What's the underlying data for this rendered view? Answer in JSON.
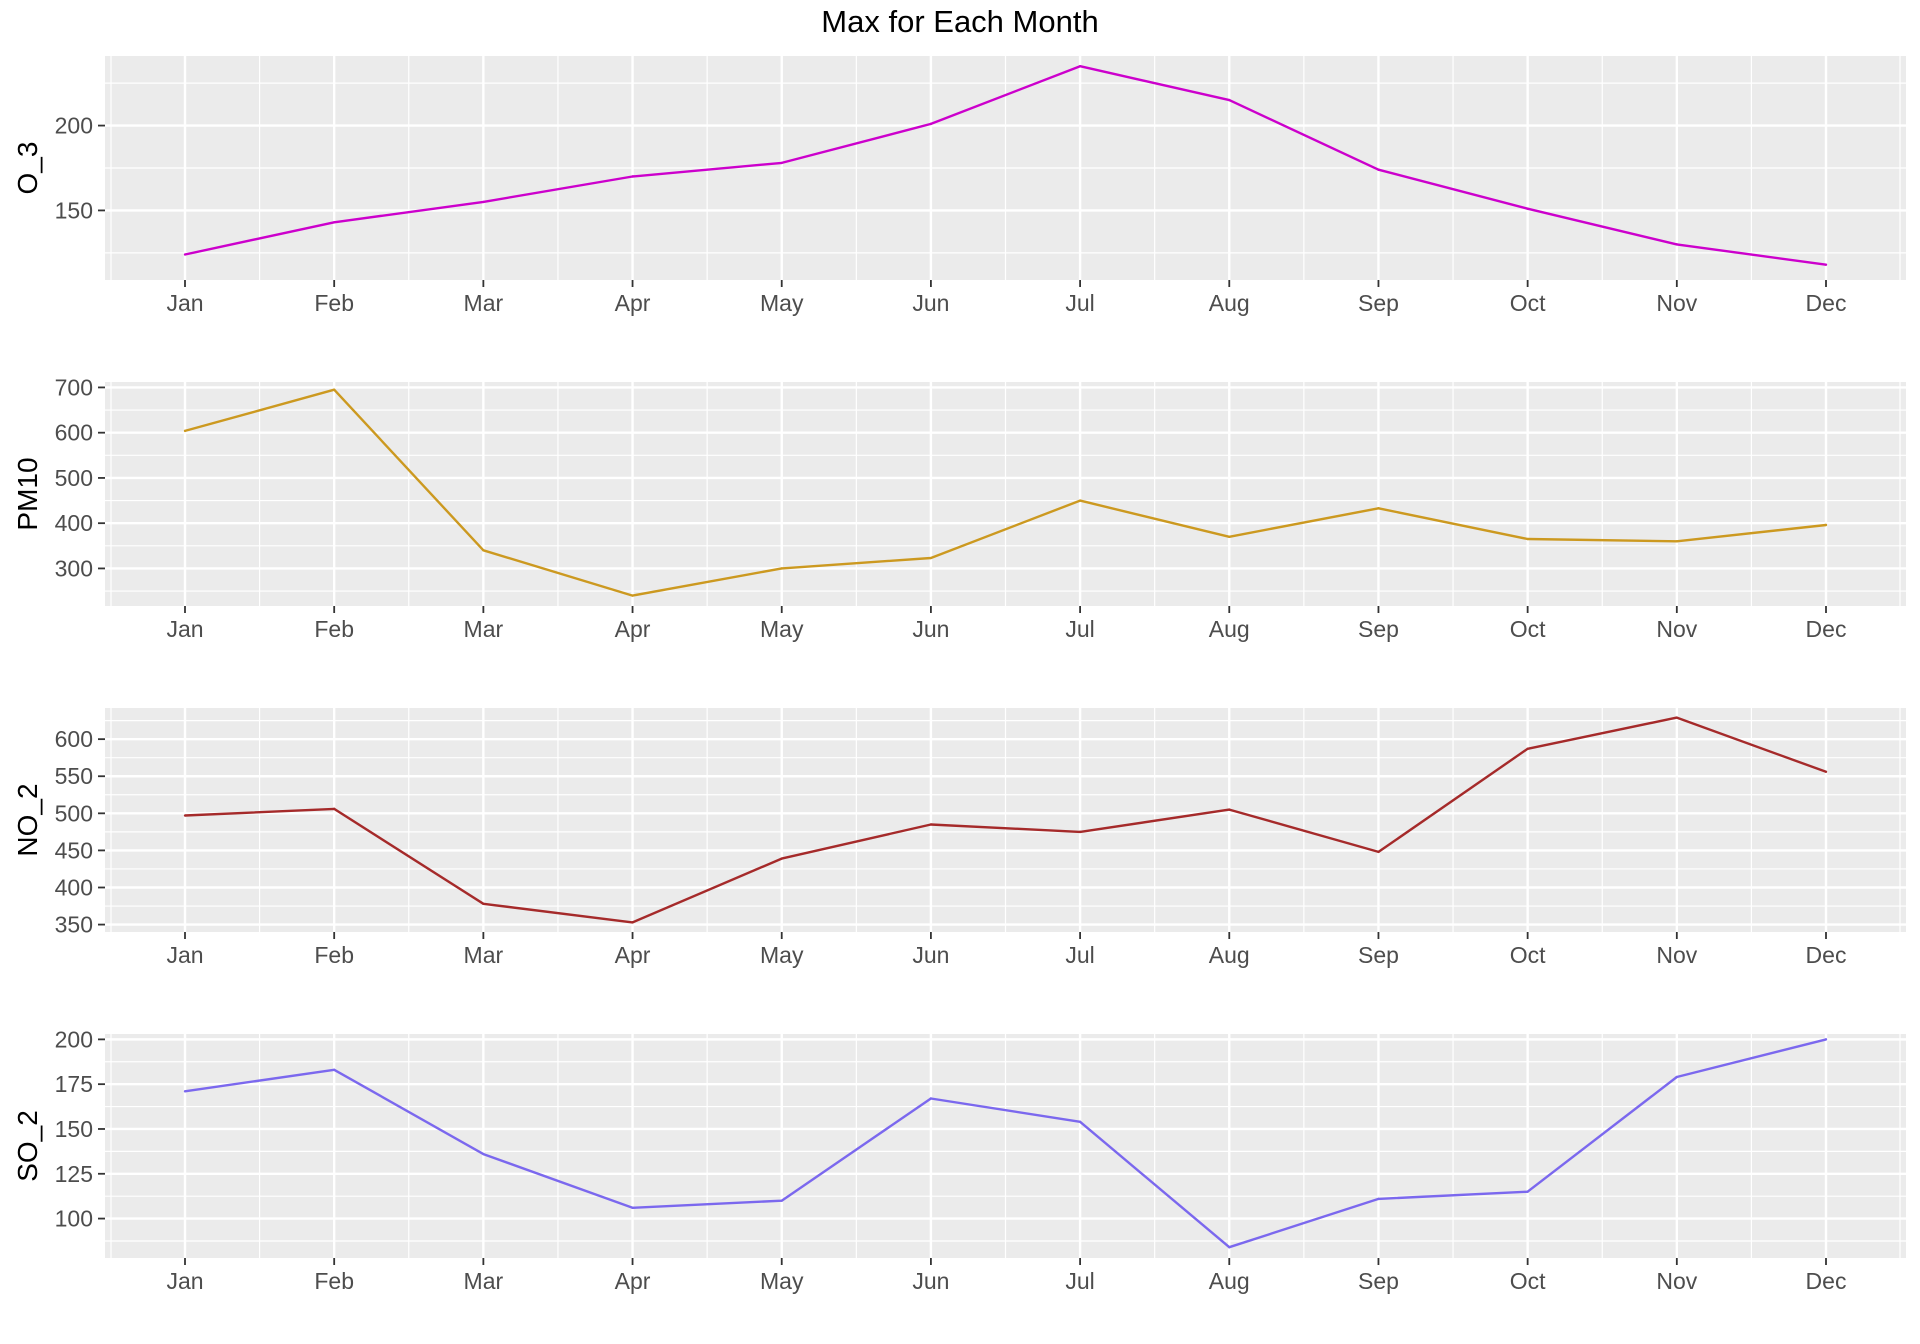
{
  "chart_data": {
    "type": "line",
    "title": "Max for Each Month",
    "xlabel": "",
    "categories": [
      "Jan",
      "Feb",
      "Mar",
      "Apr",
      "May",
      "Jun",
      "Jul",
      "Aug",
      "Sep",
      "Oct",
      "Nov",
      "Dec"
    ],
    "grid": true,
    "panels": [
      {
        "ylabel": "O_3",
        "color": "#CC00CC",
        "values": [
          124,
          143,
          155,
          170,
          178,
          201,
          235,
          215,
          174,
          151,
          130,
          118
        ],
        "yticks": [
          150,
          200
        ],
        "ylim": [
          109,
          241
        ]
      },
      {
        "ylabel": "PM10",
        "color": "#CC9920",
        "values": [
          604,
          695,
          340,
          240,
          300,
          323,
          450,
          370,
          433,
          365,
          360,
          396
        ],
        "yticks": [
          300,
          400,
          500,
          600,
          700
        ],
        "ylim": [
          217,
          712
        ]
      },
      {
        "ylabel": "NO_2",
        "color": "#A52A2A",
        "values": [
          497,
          506,
          378,
          353,
          439,
          485,
          475,
          505,
          448,
          587,
          629,
          556
        ],
        "yticks": [
          350,
          400,
          450,
          500,
          550,
          600
        ],
        "ylim": [
          340,
          642
        ]
      },
      {
        "ylabel": "SO_2",
        "color": "#7B68EE",
        "values": [
          171,
          183,
          136,
          106,
          110,
          167,
          154,
          84,
          111,
          115,
          179,
          200
        ],
        "yticks": [
          100,
          125,
          150,
          175,
          200
        ],
        "ylim": [
          78,
          203
        ]
      }
    ]
  }
}
